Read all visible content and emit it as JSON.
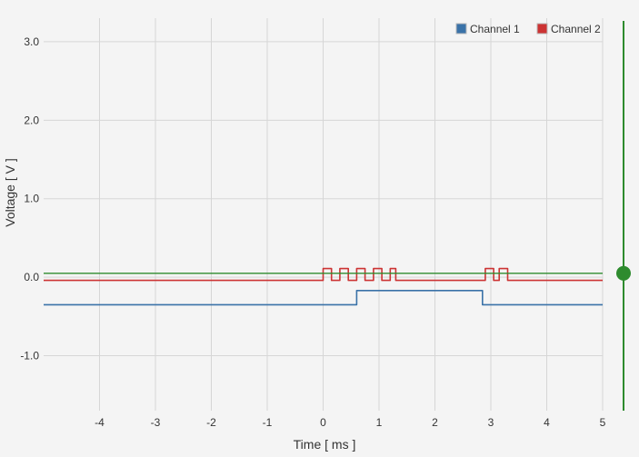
{
  "chart_data": {
    "type": "line",
    "xlabel": "Time [ ms ]",
    "ylabel": "Voltage [ V ]",
    "xlim": [
      -5,
      5
    ],
    "ylim": [
      -1.7,
      3.3
    ],
    "xticks": [
      -4,
      -3,
      -2,
      -1,
      0,
      1,
      2,
      3,
      4,
      5
    ],
    "yticks": [
      3.0,
      2.0,
      1.0,
      0.0,
      -1.0
    ],
    "xtick_labels": [
      "-4",
      "-3",
      "-2",
      "-1",
      "0",
      "1",
      "2",
      "3",
      "4",
      "5"
    ],
    "ytick_labels": [
      "3.0",
      "2.0",
      "1.0",
      "0.0",
      "-1.0"
    ],
    "grid": true,
    "legend_position": "top-right",
    "series": [
      {
        "name": "Channel 1",
        "color": "#3a72a8",
        "x": [
          -5.0,
          -0.6,
          -0.6,
          0.6,
          0.6,
          2.85,
          2.85,
          5.0
        ],
        "y": [
          -0.35,
          -0.35,
          -0.35,
          -0.35,
          -0.17,
          -0.17,
          -0.35,
          -0.35
        ]
      },
      {
        "name": "Channel 2",
        "color": "#cc3333",
        "x": [
          -5.0,
          0.0,
          0.0,
          0.15,
          0.15,
          0.3,
          0.3,
          0.45,
          0.45,
          0.6,
          0.6,
          0.75,
          0.75,
          0.9,
          0.9,
          1.05,
          1.05,
          1.2,
          1.2,
          1.3,
          1.3,
          2.9,
          2.9,
          3.05,
          3.05,
          3.15,
          3.15,
          3.3,
          3.3,
          5.0
        ],
        "y": [
          -0.04,
          -0.04,
          0.11,
          0.11,
          -0.04,
          -0.04,
          0.11,
          0.11,
          -0.04,
          -0.04,
          0.11,
          0.11,
          -0.04,
          -0.04,
          0.11,
          0.11,
          -0.04,
          -0.04,
          0.11,
          0.11,
          -0.04,
          -0.04,
          0.11,
          0.11,
          -0.04,
          -0.04,
          0.11,
          0.11,
          -0.04,
          -0.04
        ]
      }
    ],
    "trigger_level": 0.05,
    "trigger_color": "#2e8b2e"
  }
}
